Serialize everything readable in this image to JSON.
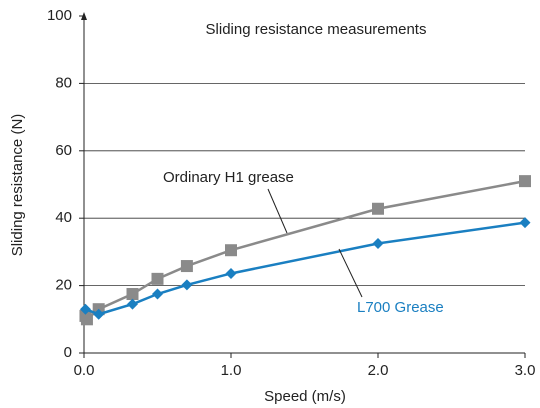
{
  "chart_data": {
    "type": "line",
    "title": "Sliding resistance measurements",
    "x_label": "Speed (m/s)",
    "y_label": "Sliding resistance (N)",
    "annotations": [
      "Ordinary H1 grease",
      "L700 Grease"
    ],
    "xlim": [
      0,
      3
    ],
    "xticks": [
      {
        "value": 0,
        "label": "0.0"
      },
      {
        "value": 1,
        "label": "1.0"
      },
      {
        "value": 2,
        "label": "2.0"
      },
      {
        "value": 3,
        "label": "3.0"
      }
    ],
    "ylim": [
      0,
      100
    ],
    "yticks": [
      0,
      20,
      40,
      60,
      80,
      100
    ],
    "grid": true,
    "series": [
      {
        "name": "Ordinary H1 grease",
        "color": "#8a8a8a",
        "marker": "square",
        "x": [
          0.01,
          0.02,
          0.1,
          0.33,
          0.5,
          0.7,
          1.0,
          2.0,
          3.0
        ],
        "values": [
          11,
          10,
          13,
          17.5,
          22,
          25.8,
          30.5,
          42.8,
          51
        ]
      },
      {
        "name": "L700 Grease",
        "color": "#1a7fc1",
        "marker": "diamond",
        "x": [
          0.01,
          0.1,
          0.33,
          0.5,
          0.7,
          1.0,
          2.0,
          3.0
        ],
        "values": [
          13,
          11.5,
          14.5,
          17.5,
          20.2,
          23.6,
          32.5,
          38.7
        ]
      }
    ]
  }
}
